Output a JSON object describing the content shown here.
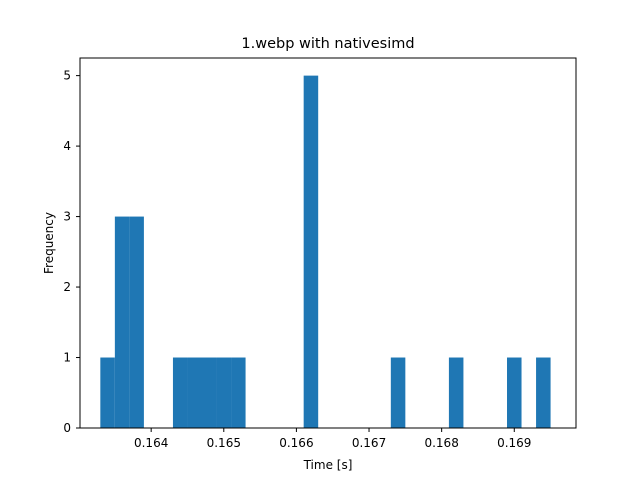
{
  "chart_data": {
    "type": "bar",
    "title": "1.webp with nativesimd",
    "xlabel": "Time [s]",
    "ylabel": "Frequency",
    "xlim": [
      0.16302,
      0.16985
    ],
    "ylim": [
      0,
      5.25
    ],
    "bar_color": "#1f77b4",
    "bin_width": 0.0002,
    "bins": [
      {
        "start": 0.1633,
        "count": 1
      },
      {
        "start": 0.1635,
        "count": 3
      },
      {
        "start": 0.1637,
        "count": 3
      },
      {
        "start": 0.1643,
        "count": 1
      },
      {
        "start": 0.1645,
        "count": 1
      },
      {
        "start": 0.1647,
        "count": 1
      },
      {
        "start": 0.1649,
        "count": 1
      },
      {
        "start": 0.1651,
        "count": 1
      },
      {
        "start": 0.1661,
        "count": 5
      },
      {
        "start": 0.1673,
        "count": 1
      },
      {
        "start": 0.1681,
        "count": 1
      },
      {
        "start": 0.1689,
        "count": 1
      },
      {
        "start": 0.1693,
        "count": 1
      }
    ],
    "xticks": [
      "0.164",
      "0.165",
      "0.166",
      "0.167",
      "0.168",
      "0.169"
    ],
    "yticks": [
      "0",
      "1",
      "2",
      "3",
      "4",
      "5"
    ],
    "grid": false,
    "legend": "none"
  }
}
